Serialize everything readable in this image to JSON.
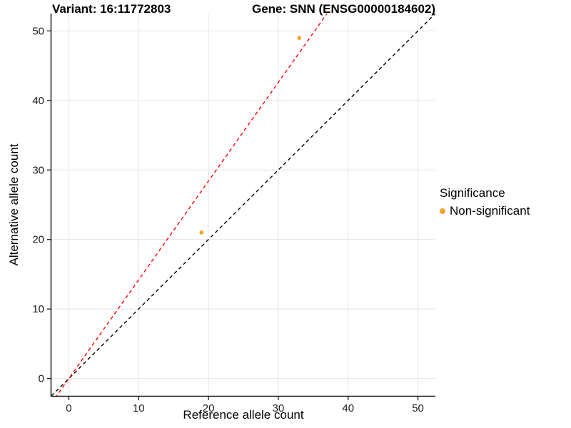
{
  "figure": {
    "title_left": "Variant: 16:11772803",
    "title_right": "Gene: SNN (ENSG00000184602)"
  },
  "chart_data": {
    "type": "scatter",
    "title": "Variant: 16:11772803   Gene: SNN (ENSG00000184602)",
    "xlabel": "Reference allele count",
    "ylabel": "Alternative allele count",
    "xlim": [
      -2.5,
      52.5
    ],
    "ylim": [
      -2.5,
      52.5
    ],
    "xticks": [
      0,
      10,
      20,
      30,
      40,
      50
    ],
    "yticks": [
      0,
      10,
      20,
      30,
      40,
      50
    ],
    "minor_grid_step": 5,
    "grid": true,
    "colors": {
      "point": "#F9A12C",
      "major_grid": "#E7E7E7",
      "minor_grid": "#F3F3F3",
      "axis_line": "#1a1a1a",
      "identity_line": "#000000",
      "fit_line": "#FF0000"
    },
    "series": [
      {
        "name": "Non-significant",
        "points": [
          {
            "x": 19,
            "y": 21
          },
          {
            "x": 33,
            "y": 49
          }
        ]
      }
    ],
    "lines": [
      {
        "name": "identity-line",
        "slope": 1.0,
        "intercept": 0,
        "style": "dashed",
        "color_key": "identity_line"
      },
      {
        "name": "fit-line",
        "slope": 1.42,
        "intercept": 0,
        "style": "dashed",
        "color_key": "fit_line"
      }
    ],
    "legend": {
      "title": "Significance",
      "position": "right",
      "items": [
        {
          "label": "Non-significant",
          "color": "#F9A12C"
        }
      ]
    }
  }
}
